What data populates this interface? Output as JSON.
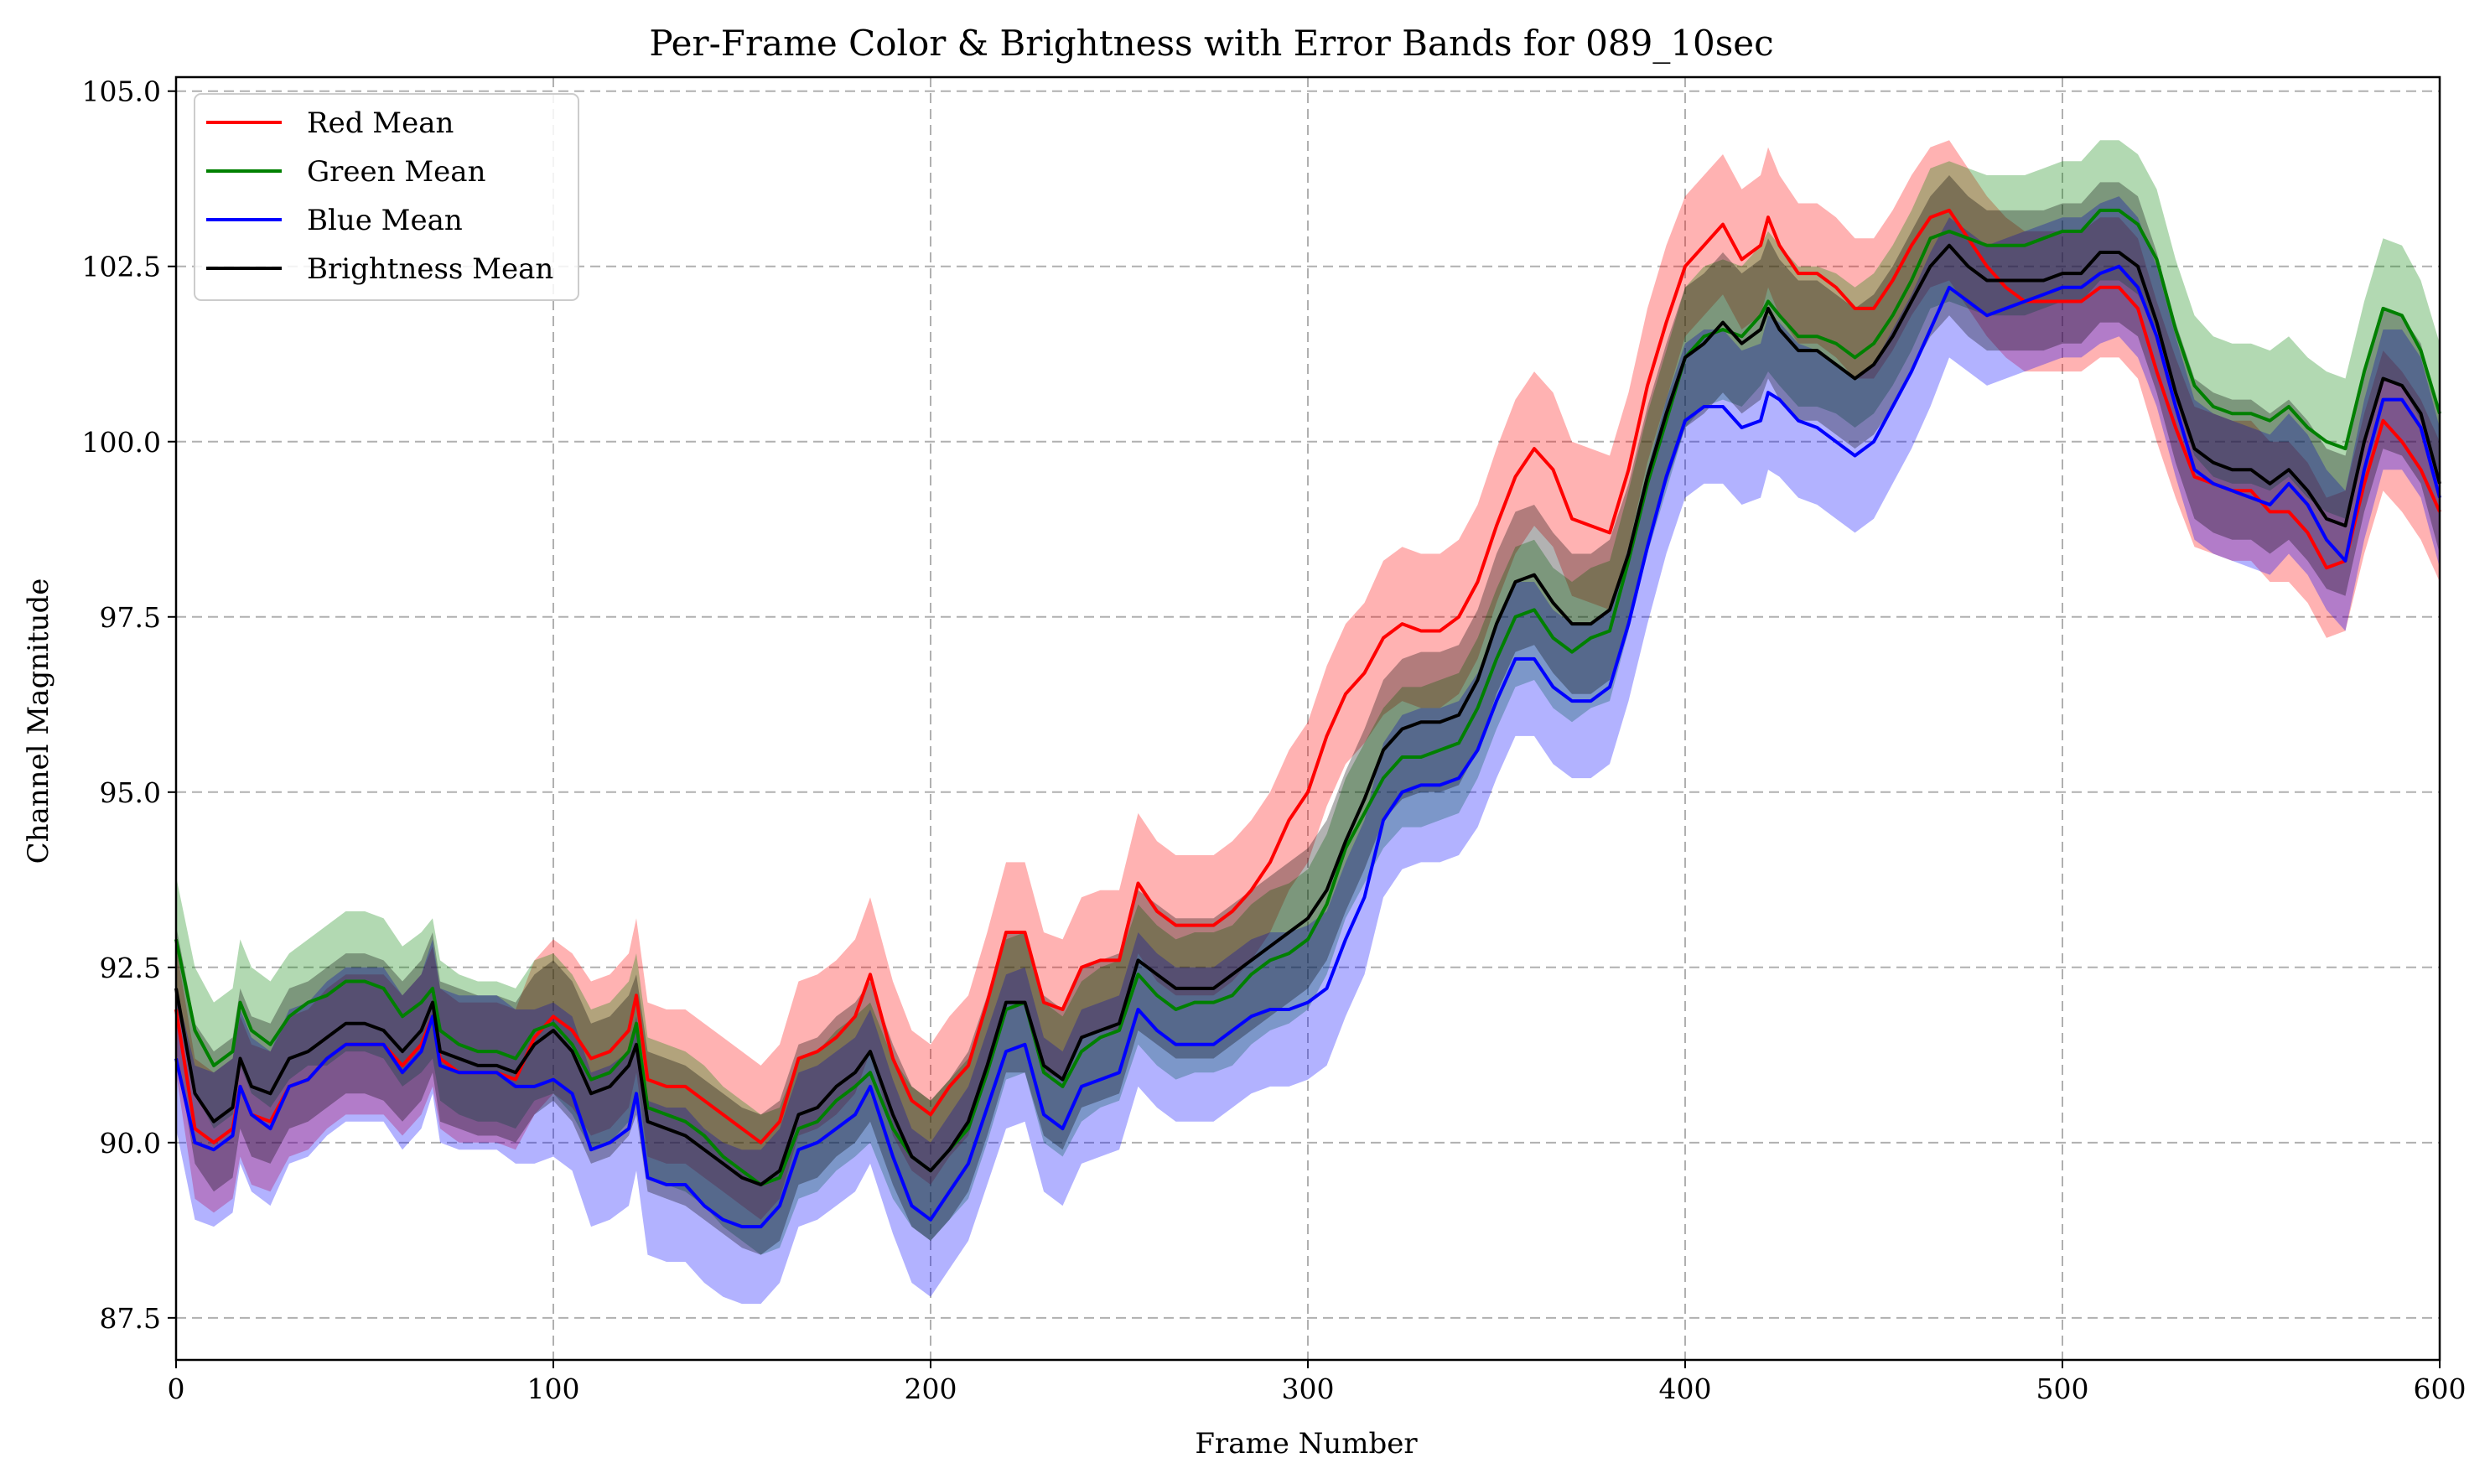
{
  "chart_data": {
    "type": "line",
    "title": "Per-Frame Color & Brightness with Error Bands for 089_10sec",
    "xlabel": "Frame Number",
    "ylabel": "Channel Magnitude",
    "xlim": [
      0,
      600
    ],
    "ylim": [
      86.9,
      105.2
    ],
    "xticks": [
      0,
      100,
      200,
      300,
      400,
      500,
      600
    ],
    "xtick_labels": [
      "0",
      "100",
      "200",
      "300",
      "400",
      "500",
      "600"
    ],
    "yticks": [
      87.5,
      90.0,
      92.5,
      95.0,
      97.5,
      100.0,
      102.5,
      105.0
    ],
    "ytick_labels": [
      "87.5",
      "90.0",
      "92.5",
      "95.0",
      "97.5",
      "100.0",
      "102.5",
      "105.0"
    ],
    "grid": true,
    "legend_position": "top-left",
    "x": [
      0,
      5,
      10,
      15,
      17,
      20,
      25,
      30,
      35,
      40,
      45,
      50,
      55,
      60,
      65,
      68,
      70,
      75,
      80,
      85,
      90,
      95,
      100,
      105,
      110,
      115,
      120,
      122,
      125,
      130,
      135,
      140,
      145,
      150,
      155,
      160,
      165,
      170,
      175,
      180,
      184,
      190,
      195,
      200,
      205,
      210,
      215,
      220,
      225,
      230,
      235,
      240,
      245,
      250,
      255,
      260,
      265,
      270,
      275,
      280,
      285,
      290,
      295,
      300,
      305,
      310,
      315,
      320,
      325,
      330,
      335,
      340,
      345,
      350,
      355,
      360,
      365,
      370,
      375,
      380,
      385,
      390,
      395,
      400,
      405,
      410,
      415,
      420,
      422,
      425,
      430,
      435,
      440,
      445,
      450,
      455,
      460,
      465,
      470,
      475,
      480,
      485,
      490,
      495,
      500,
      505,
      510,
      515,
      520,
      525,
      530,
      535,
      540,
      545,
      550,
      555,
      560,
      565,
      570,
      575,
      580,
      585,
      590,
      595,
      600
    ],
    "series": [
      {
        "name": "Red Mean",
        "color": "#ff0000",
        "values": [
          91.9,
          90.2,
          90.0,
          90.2,
          90.8,
          90.4,
          90.3,
          90.8,
          90.9,
          91.2,
          91.4,
          91.4,
          91.4,
          91.1,
          91.4,
          91.8,
          91.2,
          91.0,
          91.0,
          91.0,
          90.9,
          91.5,
          91.8,
          91.6,
          91.2,
          91.3,
          91.6,
          92.1,
          90.9,
          90.8,
          90.8,
          90.6,
          90.4,
          90.2,
          90.0,
          90.3,
          91.2,
          91.3,
          91.5,
          91.8,
          92.4,
          91.2,
          90.6,
          90.4,
          90.8,
          91.1,
          92.0,
          93.0,
          93.0,
          92.0,
          91.9,
          92.5,
          92.6,
          92.6,
          93.7,
          93.3,
          93.1,
          93.1,
          93.1,
          93.3,
          93.6,
          94.0,
          94.6,
          95.0,
          95.8,
          96.4,
          96.7,
          97.2,
          97.4,
          97.3,
          97.3,
          97.5,
          98.0,
          98.8,
          99.5,
          99.9,
          99.6,
          98.9,
          98.8,
          98.7,
          99.6,
          100.8,
          101.7,
          102.5,
          102.8,
          103.1,
          102.6,
          102.8,
          103.2,
          102.8,
          102.4,
          102.4,
          102.2,
          101.9,
          101.9,
          102.3,
          102.8,
          103.2,
          103.3,
          102.9,
          102.5,
          102.2,
          102.0,
          102.0,
          102.0,
          102.0,
          102.2,
          102.2,
          101.9,
          101.0,
          100.2,
          99.5,
          99.4,
          99.3,
          99.3,
          99.0,
          99.0,
          98.7,
          98.2,
          98.3,
          99.4,
          100.3,
          100.0,
          99.6,
          99.0
        ]
      },
      {
        "name": "Green Mean",
        "color": "#008000",
        "values": [
          92.9,
          91.6,
          91.1,
          91.3,
          92.0,
          91.6,
          91.4,
          91.8,
          92.0,
          92.1,
          92.3,
          92.3,
          92.2,
          91.8,
          92.0,
          92.2,
          91.6,
          91.4,
          91.3,
          91.3,
          91.2,
          91.6,
          91.7,
          91.4,
          90.9,
          91.0,
          91.3,
          91.7,
          90.5,
          90.4,
          90.3,
          90.1,
          89.8,
          89.6,
          89.4,
          89.5,
          90.2,
          90.3,
          90.6,
          90.8,
          91.0,
          90.2,
          89.8,
          89.6,
          89.9,
          90.2,
          91.0,
          91.9,
          92.0,
          91.0,
          90.8,
          91.3,
          91.5,
          91.6,
          92.4,
          92.1,
          91.9,
          92.0,
          92.0,
          92.1,
          92.4,
          92.6,
          92.7,
          92.9,
          93.4,
          94.2,
          94.7,
          95.2,
          95.5,
          95.5,
          95.6,
          95.7,
          96.2,
          96.9,
          97.5,
          97.6,
          97.2,
          97.0,
          97.2,
          97.3,
          98.3,
          99.4,
          100.3,
          101.2,
          101.5,
          101.6,
          101.5,
          101.8,
          102.0,
          101.8,
          101.5,
          101.5,
          101.4,
          101.2,
          101.4,
          101.8,
          102.3,
          102.9,
          103.0,
          102.9,
          102.8,
          102.8,
          102.8,
          102.9,
          103.0,
          103.0,
          103.3,
          103.3,
          103.1,
          102.6,
          101.6,
          100.8,
          100.5,
          100.4,
          100.4,
          100.3,
          100.5,
          100.2,
          100.0,
          99.9,
          101.0,
          101.9,
          101.8,
          101.3,
          100.4
        ]
      },
      {
        "name": "Blue Mean",
        "color": "#0000ff",
        "values": [
          91.2,
          90.0,
          89.9,
          90.1,
          90.8,
          90.4,
          90.2,
          90.8,
          90.9,
          91.2,
          91.4,
          91.4,
          91.4,
          91.0,
          91.3,
          91.8,
          91.1,
          91.0,
          91.0,
          91.0,
          90.8,
          90.8,
          90.9,
          90.7,
          89.9,
          90.0,
          90.2,
          90.7,
          89.5,
          89.4,
          89.4,
          89.1,
          88.9,
          88.8,
          88.8,
          89.1,
          89.9,
          90.0,
          90.2,
          90.4,
          90.8,
          89.8,
          89.1,
          88.9,
          89.3,
          89.7,
          90.5,
          91.3,
          91.4,
          90.4,
          90.2,
          90.8,
          90.9,
          91.0,
          91.9,
          91.6,
          91.4,
          91.4,
          91.4,
          91.6,
          91.8,
          91.9,
          91.9,
          92.0,
          92.2,
          92.9,
          93.5,
          94.6,
          95.0,
          95.1,
          95.1,
          95.2,
          95.6,
          96.3,
          96.9,
          96.9,
          96.5,
          96.3,
          96.3,
          96.5,
          97.4,
          98.5,
          99.5,
          100.3,
          100.5,
          100.5,
          100.2,
          100.3,
          100.7,
          100.6,
          100.3,
          100.2,
          100.0,
          99.8,
          100.0,
          100.5,
          101.0,
          101.6,
          102.2,
          102.0,
          101.8,
          101.9,
          102.0,
          102.1,
          102.2,
          102.2,
          102.4,
          102.5,
          102.2,
          101.5,
          100.5,
          99.6,
          99.4,
          99.3,
          99.2,
          99.1,
          99.4,
          99.1,
          98.6,
          98.3,
          99.6,
          100.6,
          100.6,
          100.2,
          99.2
        ]
      },
      {
        "name": "Brightness Mean",
        "color": "#000000",
        "values": [
          92.2,
          90.7,
          90.3,
          90.5,
          91.2,
          90.8,
          90.7,
          91.2,
          91.3,
          91.5,
          91.7,
          91.7,
          91.6,
          91.3,
          91.6,
          92.0,
          91.3,
          91.2,
          91.1,
          91.1,
          91.0,
          91.4,
          91.6,
          91.3,
          90.7,
          90.8,
          91.1,
          91.4,
          90.3,
          90.2,
          90.1,
          89.9,
          89.7,
          89.5,
          89.4,
          89.6,
          90.4,
          90.5,
          90.8,
          91.0,
          91.3,
          90.4,
          89.8,
          89.6,
          89.9,
          90.3,
          91.1,
          92.0,
          92.0,
          91.1,
          90.9,
          91.5,
          91.6,
          91.7,
          92.6,
          92.4,
          92.2,
          92.2,
          92.2,
          92.4,
          92.6,
          92.8,
          93.0,
          93.2,
          93.6,
          94.3,
          94.9,
          95.6,
          95.9,
          96.0,
          96.0,
          96.1,
          96.6,
          97.4,
          98.0,
          98.1,
          97.7,
          97.4,
          97.4,
          97.6,
          98.4,
          99.5,
          100.4,
          101.2,
          101.4,
          101.7,
          101.4,
          101.6,
          101.9,
          101.6,
          101.3,
          101.3,
          101.1,
          100.9,
          101.1,
          101.5,
          102.0,
          102.5,
          102.8,
          102.5,
          102.3,
          102.3,
          102.3,
          102.3,
          102.4,
          102.4,
          102.7,
          102.7,
          102.5,
          101.7,
          100.7,
          99.9,
          99.7,
          99.6,
          99.6,
          99.4,
          99.6,
          99.3,
          98.9,
          98.8,
          100.0,
          100.9,
          100.8,
          100.4,
          99.4
        ]
      }
    ],
    "error_bands": [
      {
        "name": "Red Mean",
        "half_width": [
          0.9,
          1.0,
          1.0,
          1.0,
          1.0,
          1.0,
          1.0,
          1.0,
          1.0,
          1.0,
          1.0,
          1.0,
          1.0,
          1.0,
          1.0,
          1.0,
          1.0,
          1.0,
          1.0,
          1.0,
          1.0,
          1.1,
          1.1,
          1.1,
          1.1,
          1.1,
          1.1,
          1.1,
          1.1,
          1.1,
          1.1,
          1.1,
          1.1,
          1.1,
          1.1,
          1.1,
          1.1,
          1.1,
          1.1,
          1.1,
          1.1,
          1.1,
          1.0,
          1.0,
          1.0,
          1.0,
          1.0,
          1.0,
          1.0,
          1.0,
          1.0,
          1.0,
          1.0,
          1.0,
          1.0,
          1.0,
          1.0,
          1.0,
          1.0,
          1.0,
          1.0,
          1.0,
          1.0,
          1.0,
          1.0,
          1.0,
          1.0,
          1.1,
          1.1,
          1.1,
          1.1,
          1.1,
          1.1,
          1.1,
          1.1,
          1.1,
          1.1,
          1.1,
          1.1,
          1.1,
          1.1,
          1.1,
          1.1,
          1.0,
          1.0,
          1.0,
          1.0,
          1.0,
          1.0,
          1.0,
          1.0,
          1.0,
          1.0,
          1.0,
          1.0,
          1.0,
          1.0,
          1.0,
          1.0,
          1.0,
          1.0,
          1.0,
          1.0,
          1.0,
          1.0,
          1.0,
          1.0,
          1.0,
          1.0,
          1.0,
          1.0,
          1.0,
          1.0,
          1.0,
          1.0,
          1.0,
          1.0,
          1.0,
          1.0,
          1.0,
          1.0,
          1.0,
          1.0,
          1.0,
          1.0
        ]
      },
      {
        "name": "Green Mean",
        "half_width": [
          0.9,
          0.9,
          0.9,
          0.9,
          0.9,
          0.9,
          0.9,
          0.9,
          0.9,
          1.0,
          1.0,
          1.0,
          1.0,
          1.0,
          1.0,
          1.0,
          1.0,
          1.0,
          1.0,
          1.0,
          1.0,
          1.0,
          1.0,
          1.0,
          1.0,
          1.0,
          1.0,
          1.0,
          1.0,
          1.0,
          1.0,
          1.0,
          1.0,
          1.0,
          1.0,
          1.0,
          1.0,
          1.0,
          1.0,
          1.0,
          1.0,
          1.0,
          1.0,
          1.0,
          1.0,
          1.0,
          1.0,
          1.0,
          1.0,
          1.0,
          1.0,
          1.0,
          1.0,
          1.0,
          1.0,
          1.0,
          1.0,
          1.0,
          1.0,
          1.0,
          1.0,
          1.0,
          1.0,
          1.0,
          1.0,
          1.0,
          1.0,
          1.0,
          1.0,
          1.0,
          1.0,
          1.0,
          1.0,
          1.0,
          1.0,
          1.0,
          1.0,
          1.0,
          1.0,
          1.0,
          1.0,
          1.0,
          1.0,
          1.0,
          1.0,
          1.0,
          1.0,
          1.0,
          1.0,
          1.0,
          1.0,
          1.0,
          1.0,
          1.0,
          1.0,
          1.0,
          1.0,
          1.0,
          1.0,
          1.0,
          1.0,
          1.0,
          1.0,
          1.0,
          1.0,
          1.0,
          1.0,
          1.0,
          1.0,
          1.0,
          1.0,
          1.0,
          1.0,
          1.0,
          1.0,
          1.0,
          1.0,
          1.0,
          1.0,
          1.0,
          1.0,
          1.0,
          1.0,
          1.0,
          1.0
        ]
      },
      {
        "name": "Blue Mean",
        "half_width": [
          1.0,
          1.1,
          1.1,
          1.1,
          1.1,
          1.1,
          1.1,
          1.1,
          1.1,
          1.1,
          1.1,
          1.1,
          1.1,
          1.1,
          1.1,
          1.1,
          1.1,
          1.1,
          1.1,
          1.1,
          1.1,
          1.1,
          1.1,
          1.1,
          1.1,
          1.1,
          1.1,
          1.1,
          1.1,
          1.1,
          1.1,
          1.1,
          1.1,
          1.1,
          1.1,
          1.1,
          1.1,
          1.1,
          1.1,
          1.1,
          1.1,
          1.1,
          1.1,
          1.1,
          1.1,
          1.1,
          1.1,
          1.1,
          1.1,
          1.1,
          1.1,
          1.1,
          1.1,
          1.1,
          1.1,
          1.1,
          1.1,
          1.1,
          1.1,
          1.1,
          1.1,
          1.1,
          1.1,
          1.1,
          1.1,
          1.1,
          1.1,
          1.1,
          1.1,
          1.1,
          1.1,
          1.1,
          1.1,
          1.1,
          1.1,
          1.1,
          1.1,
          1.1,
          1.1,
          1.1,
          1.1,
          1.1,
          1.1,
          1.1,
          1.1,
          1.1,
          1.1,
          1.1,
          1.1,
          1.1,
          1.1,
          1.1,
          1.1,
          1.1,
          1.1,
          1.1,
          1.1,
          1.1,
          1.0,
          1.0,
          1.0,
          1.0,
          1.0,
          1.0,
          1.0,
          1.0,
          1.0,
          1.0,
          1.0,
          1.0,
          1.0,
          1.0,
          1.0,
          1.0,
          1.0,
          1.0,
          1.0,
          1.0,
          1.0,
          1.0,
          1.0,
          1.0,
          1.0,
          1.0,
          1.0
        ]
      },
      {
        "name": "Brightness Mean",
        "half_width": [
          0.9,
          1.0,
          1.0,
          1.0,
          1.0,
          1.0,
          1.0,
          1.0,
          1.0,
          1.0,
          1.0,
          1.0,
          1.0,
          1.0,
          1.0,
          1.0,
          1.0,
          1.0,
          1.0,
          1.0,
          1.0,
          1.0,
          1.0,
          1.0,
          1.0,
          1.0,
          1.0,
          1.0,
          1.0,
          1.0,
          1.0,
          1.0,
          1.0,
          1.0,
          1.0,
          1.0,
          1.0,
          1.0,
          1.0,
          1.0,
          1.0,
          1.0,
          1.0,
          1.0,
          1.0,
          1.0,
          1.0,
          1.0,
          1.0,
          1.0,
          1.0,
          1.0,
          1.0,
          1.0,
          1.0,
          1.0,
          1.0,
          1.0,
          1.0,
          1.0,
          1.0,
          1.0,
          1.0,
          1.0,
          1.0,
          1.0,
          1.0,
          1.0,
          1.0,
          1.0,
          1.0,
          1.0,
          1.0,
          1.0,
          1.0,
          1.0,
          1.0,
          1.0,
          1.0,
          1.0,
          1.0,
          1.0,
          1.0,
          1.0,
          1.0,
          1.0,
          1.0,
          1.0,
          1.0,
          1.0,
          1.0,
          1.0,
          1.0,
          1.0,
          1.0,
          1.0,
          1.0,
          1.0,
          1.0,
          1.0,
          1.0,
          1.0,
          1.0,
          1.0,
          1.0,
          1.0,
          1.0,
          1.0,
          1.0,
          1.0,
          1.0,
          1.0,
          1.0,
          1.0,
          1.0,
          1.0,
          1.0,
          1.0,
          1.0,
          1.0,
          1.0,
          1.0,
          1.0,
          1.0,
          1.0
        ]
      }
    ]
  }
}
